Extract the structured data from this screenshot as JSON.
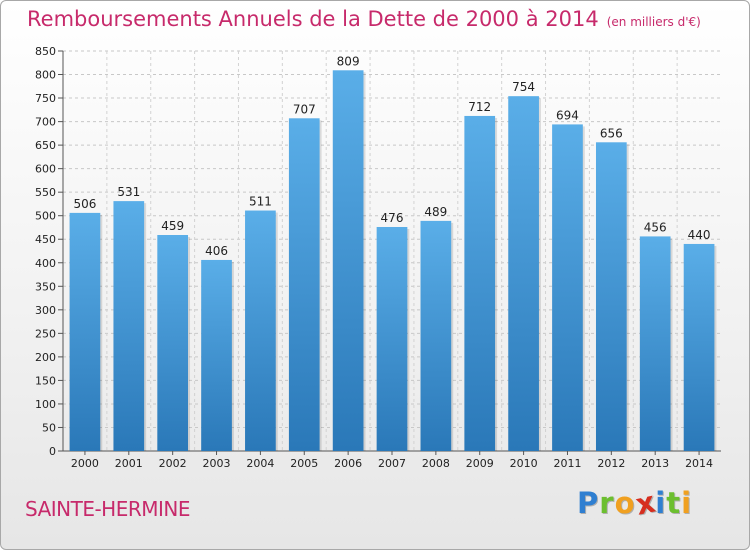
{
  "header": {
    "title": "Remboursements Annuels de la Dette de 2000 à 2014",
    "unit": "(en milliers d'€)"
  },
  "footer": {
    "commune": "SAINTE-HERMINE",
    "logo_letters": [
      {
        "ch": "P",
        "color": "#2f7fd1"
      },
      {
        "ch": "r",
        "color": "#6cbf2f"
      },
      {
        "ch": "o",
        "color": "#f0a020"
      },
      {
        "ch": "x",
        "color": "#d62e1f"
      },
      {
        "ch": "i",
        "color": "#2f7fd1"
      },
      {
        "ch": "t",
        "color": "#6cbf2f"
      },
      {
        "ch": "i",
        "color": "#f0a020"
      }
    ]
  },
  "chart_data": {
    "type": "bar",
    "title": "Remboursements Annuels de la Dette de 2000 à 2014",
    "unit": "(en milliers d'€)",
    "categories": [
      "2000",
      "2001",
      "2002",
      "2003",
      "2004",
      "2005",
      "2006",
      "2007",
      "2008",
      "2009",
      "2010",
      "2011",
      "2012",
      "2013",
      "2014"
    ],
    "values": [
      506,
      531,
      459,
      406,
      511,
      707,
      809,
      476,
      489,
      712,
      754,
      694,
      656,
      456,
      440
    ],
    "ylim": [
      0,
      850
    ],
    "ytick_step": 50,
    "grid": true,
    "bar_color_top": "#5aaee8",
    "bar_color_bottom": "#2a78b8"
  }
}
